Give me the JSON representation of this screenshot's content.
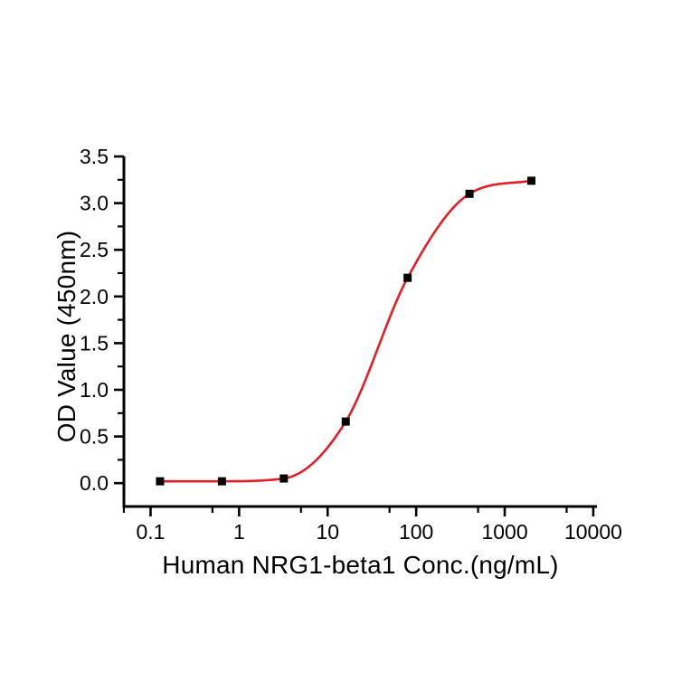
{
  "figure": {
    "background": "#ffffff",
    "axis_color": "#000000"
  },
  "chart_data": {
    "type": "scatter",
    "title": "",
    "xlabel": "Human NRG1-beta1 Conc.(ng/mL)",
    "ylabel": "OD Value (450nm)",
    "x_scale": "log",
    "y_scale": "linear",
    "grid": false,
    "legend": "none",
    "xlim": [
      0.05,
      11000
    ],
    "ylim": [
      -0.25,
      3.5
    ],
    "x_major_ticks": [
      0.1,
      1,
      10,
      100,
      1000,
      10000
    ],
    "x_tick_labels": [
      "0.1",
      "1",
      "10",
      "100",
      "1000",
      "10000"
    ],
    "x_minor_ticks": [
      0.05,
      0.5,
      5,
      50,
      500,
      5000
    ],
    "y_major_ticks": [
      0,
      0.5,
      1,
      1.5,
      2,
      2.5,
      3,
      3.5
    ],
    "y_tick_labels": [
      "0.0",
      "0.5",
      "1.0",
      "1.5",
      "2.0",
      "2.5",
      "3.0",
      "3.5"
    ],
    "y_minor_ticks": [
      0.25,
      0.75,
      1.25,
      1.75,
      2.25,
      2.75,
      3.25
    ],
    "series": [
      {
        "name": "Human NRG1-beta1",
        "x": [
          0.128,
          0.64,
          3.2,
          16,
          80,
          400,
          2000
        ],
        "y": [
          0.02,
          0.02,
          0.05,
          0.66,
          2.2,
          3.1,
          3.24
        ],
        "marker": "square",
        "marker_color": "#000000",
        "curve": "4PL sigmoidal fit",
        "curve_color": "#e31e24"
      }
    ]
  }
}
